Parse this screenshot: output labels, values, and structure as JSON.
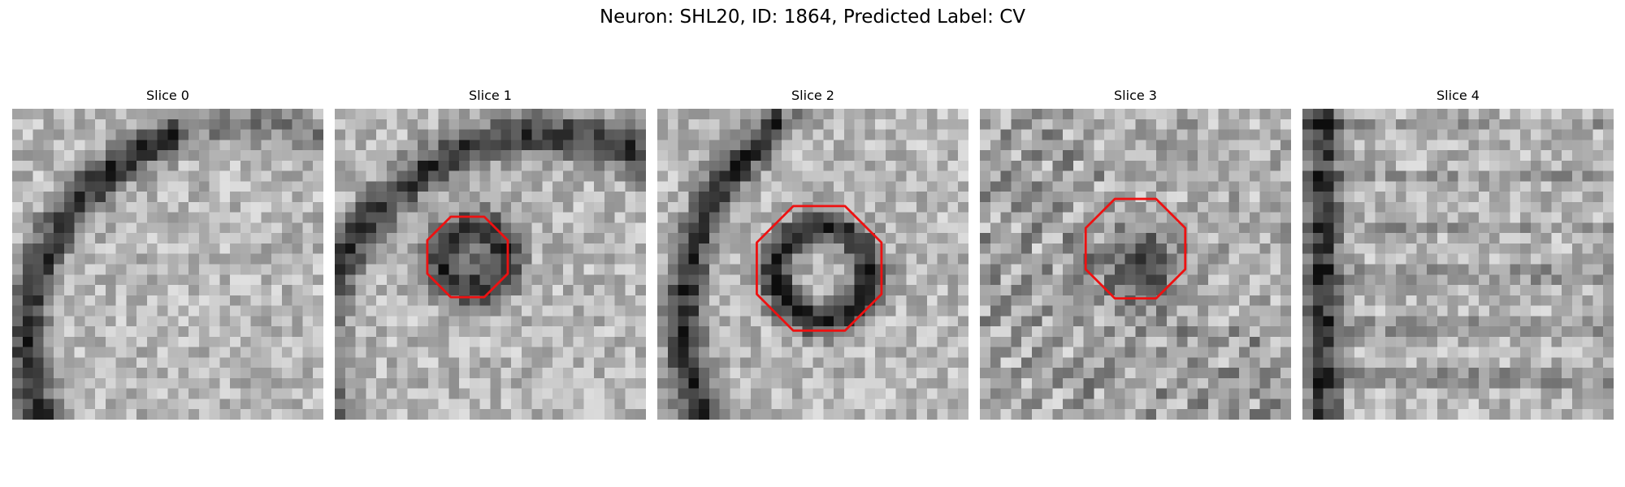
{
  "figure": {
    "title": "Neuron: SHL20, ID: 1864, Predicted Label: CV"
  },
  "slices": [
    {
      "title": "Slice 0",
      "seed": 11,
      "contour": false,
      "structures": [
        "arc_left"
      ]
    },
    {
      "title": "Slice 1",
      "seed": 23,
      "contour": true,
      "structures": [
        "arc_top_left",
        "ring_small"
      ]
    },
    {
      "title": "Slice 2",
      "seed": 37,
      "contour": true,
      "structures": [
        "arc_left_long",
        "ring_large"
      ]
    },
    {
      "title": "Slice 3",
      "seed": 41,
      "contour": true,
      "structures": [
        "diagonal_stripes",
        "blob"
      ]
    },
    {
      "title": "Slice 4",
      "seed": 59,
      "contour": false,
      "structures": [
        "band_left"
      ]
    }
  ],
  "style": {
    "contour_color": "#ee1111"
  }
}
